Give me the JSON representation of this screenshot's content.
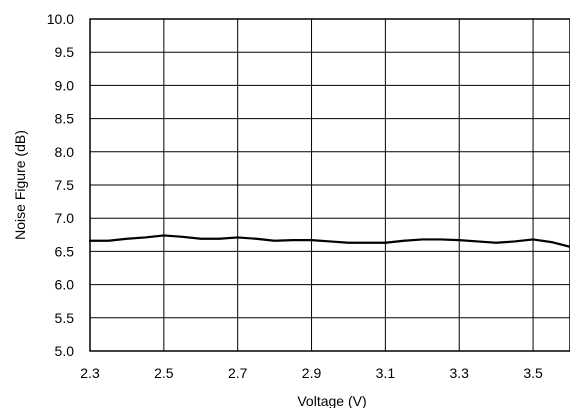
{
  "chart_data": {
    "type": "line",
    "xlabel": "Voltage (V)",
    "ylabel": "Noise Figure (dB)",
    "xlim": [
      2.3,
      3.6
    ],
    "ylim": [
      5.0,
      10.0
    ],
    "x_ticks": [
      "2.3",
      "2.5",
      "2.7",
      "2.9",
      "3.1",
      "3.3",
      "3.5"
    ],
    "y_ticks": [
      "10.0",
      "9.5",
      "9.0",
      "8.5",
      "8.0",
      "7.5",
      "7.0",
      "6.5",
      "6.0",
      "5.5",
      "5.0"
    ],
    "grid": true,
    "series": [
      {
        "color": "#000000",
        "x": [
          2.3,
          2.35,
          2.4,
          2.45,
          2.5,
          2.55,
          2.6,
          2.65,
          2.7,
          2.75,
          2.8,
          2.85,
          2.9,
          2.95,
          3.0,
          3.05,
          3.1,
          3.15,
          3.2,
          3.25,
          3.3,
          3.35,
          3.4,
          3.45,
          3.5,
          3.55,
          3.6
        ],
        "y": [
          6.66,
          6.66,
          6.69,
          6.71,
          6.74,
          6.72,
          6.69,
          6.69,
          6.71,
          6.69,
          6.66,
          6.67,
          6.67,
          6.65,
          6.63,
          6.63,
          6.63,
          6.66,
          6.68,
          6.68,
          6.67,
          6.65,
          6.63,
          6.65,
          6.68,
          6.64,
          6.57
        ]
      }
    ]
  }
}
